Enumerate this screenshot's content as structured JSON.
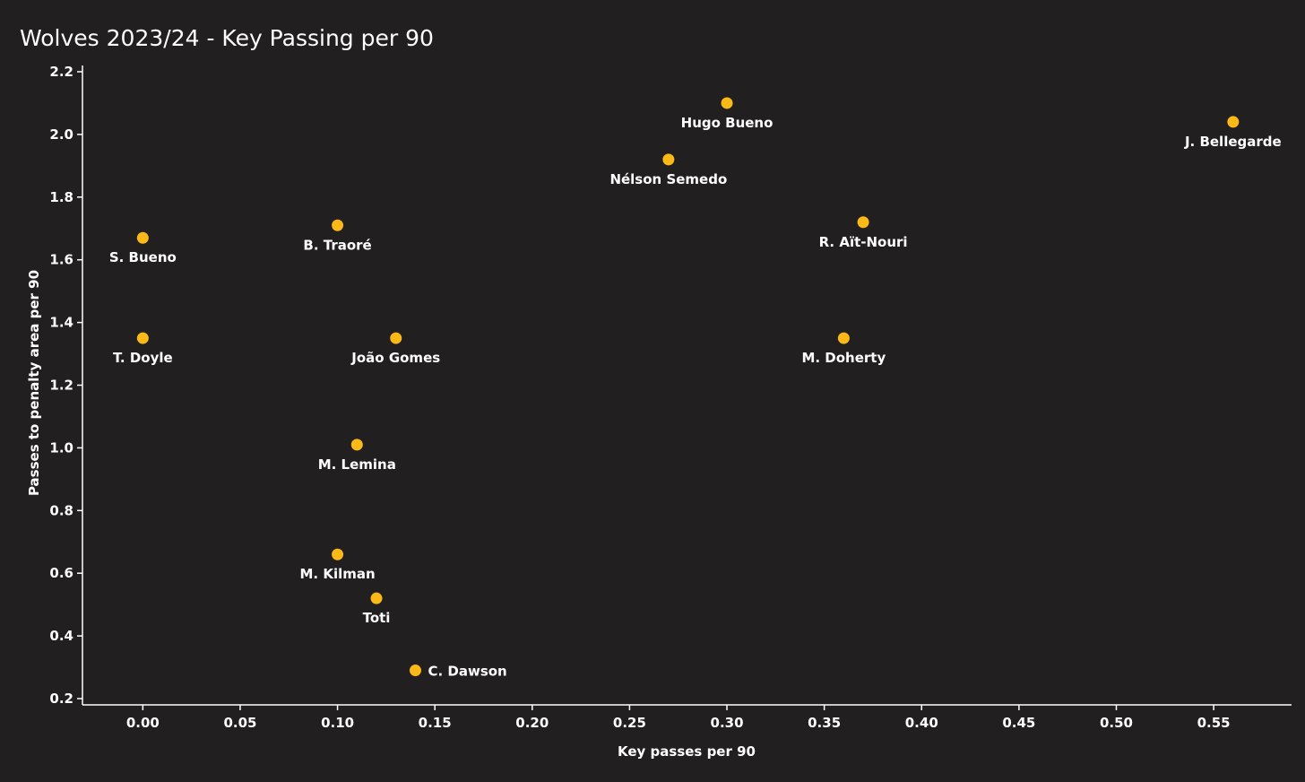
{
  "chart_data": {
    "type": "scatter",
    "title": "Wolves 2023/24 - Key Passing per 90",
    "xlabel": "Key passes per 90",
    "ylabel": "Passes to penalty area per 90",
    "xlim": [
      -0.031,
      0.59
    ],
    "ylim": [
      0.18,
      2.22
    ],
    "xticks": [
      0.0,
      0.05,
      0.1,
      0.15,
      0.2,
      0.25,
      0.3,
      0.35,
      0.4,
      0.45,
      0.5,
      0.55
    ],
    "xtick_labels": [
      "0.00",
      "0.05",
      "0.10",
      "0.15",
      "0.20",
      "0.25",
      "0.30",
      "0.35",
      "0.40",
      "0.45",
      "0.50",
      "0.55"
    ],
    "yticks": [
      0.2,
      0.4,
      0.6,
      0.8,
      1.0,
      1.2,
      1.4,
      1.6,
      1.8,
      2.0,
      2.2
    ],
    "ytick_labels": [
      "0.2",
      "0.4",
      "0.6",
      "0.8",
      "1.0",
      "1.2",
      "1.4",
      "1.6",
      "1.8",
      "2.0",
      "2.2"
    ],
    "grid": false,
    "marker_color": "#fbb917",
    "background_color": "#221f20",
    "text_color": "#ffffff",
    "points": [
      {
        "label": "Hugo Bueno",
        "x": 0.3,
        "y": 2.1,
        "label_position": "below"
      },
      {
        "label": "J. Bellegarde",
        "x": 0.56,
        "y": 2.04,
        "label_position": "below"
      },
      {
        "label": "Nélson Semedo",
        "x": 0.27,
        "y": 1.92,
        "label_position": "below"
      },
      {
        "label": "R. Aït-Nouri",
        "x": 0.37,
        "y": 1.72,
        "label_position": "below"
      },
      {
        "label": "B. Traoré",
        "x": 0.1,
        "y": 1.71,
        "label_position": "below"
      },
      {
        "label": "S. Bueno",
        "x": 0.0,
        "y": 1.67,
        "label_position": "below"
      },
      {
        "label": "T. Doyle",
        "x": 0.0,
        "y": 1.35,
        "label_position": "below"
      },
      {
        "label": "João Gomes",
        "x": 0.13,
        "y": 1.35,
        "label_position": "below"
      },
      {
        "label": "M. Doherty",
        "x": 0.36,
        "y": 1.35,
        "label_position": "below"
      },
      {
        "label": "M. Lemina",
        "x": 0.11,
        "y": 1.01,
        "label_position": "below"
      },
      {
        "label": "M. Kilman",
        "x": 0.1,
        "y": 0.66,
        "label_position": "below"
      },
      {
        "label": "Toti",
        "x": 0.12,
        "y": 0.52,
        "label_position": "below"
      },
      {
        "label": "C. Dawson",
        "x": 0.14,
        "y": 0.29,
        "label_position": "right"
      }
    ]
  }
}
